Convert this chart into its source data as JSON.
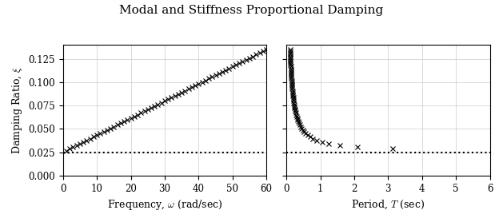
{
  "title": "Modal and Stiffness Proportional Damping",
  "xlabel_left": "Frequency, $\\omega$ (rad/sec)",
  "ylabel": "Damping Ratio, $\\xi$",
  "xlabel_right": "Period, $T$ (sec)",
  "xlim_left": [
    0,
    60
  ],
  "xlim_right": [
    0,
    6
  ],
  "ylim": [
    0,
    0.14
  ],
  "yticks": [
    0.0,
    0.025,
    0.05,
    0.075,
    0.1,
    0.125
  ],
  "xticks_left": [
    0,
    10,
    20,
    30,
    40,
    50,
    60
  ],
  "xticks_right": [
    0,
    1,
    2,
    3,
    4,
    5,
    6
  ],
  "modal_damping": 0.025,
  "marker": "x",
  "marker_size": 4,
  "marker_color": "black",
  "dotted_color": "black",
  "dotted_style": ":",
  "dotted_lw": 1.5,
  "grid_color": "#cccccc",
  "bg_color": "white",
  "title_fontsize": 11,
  "label_fontsize": 9,
  "tick_fontsize": 8.5
}
